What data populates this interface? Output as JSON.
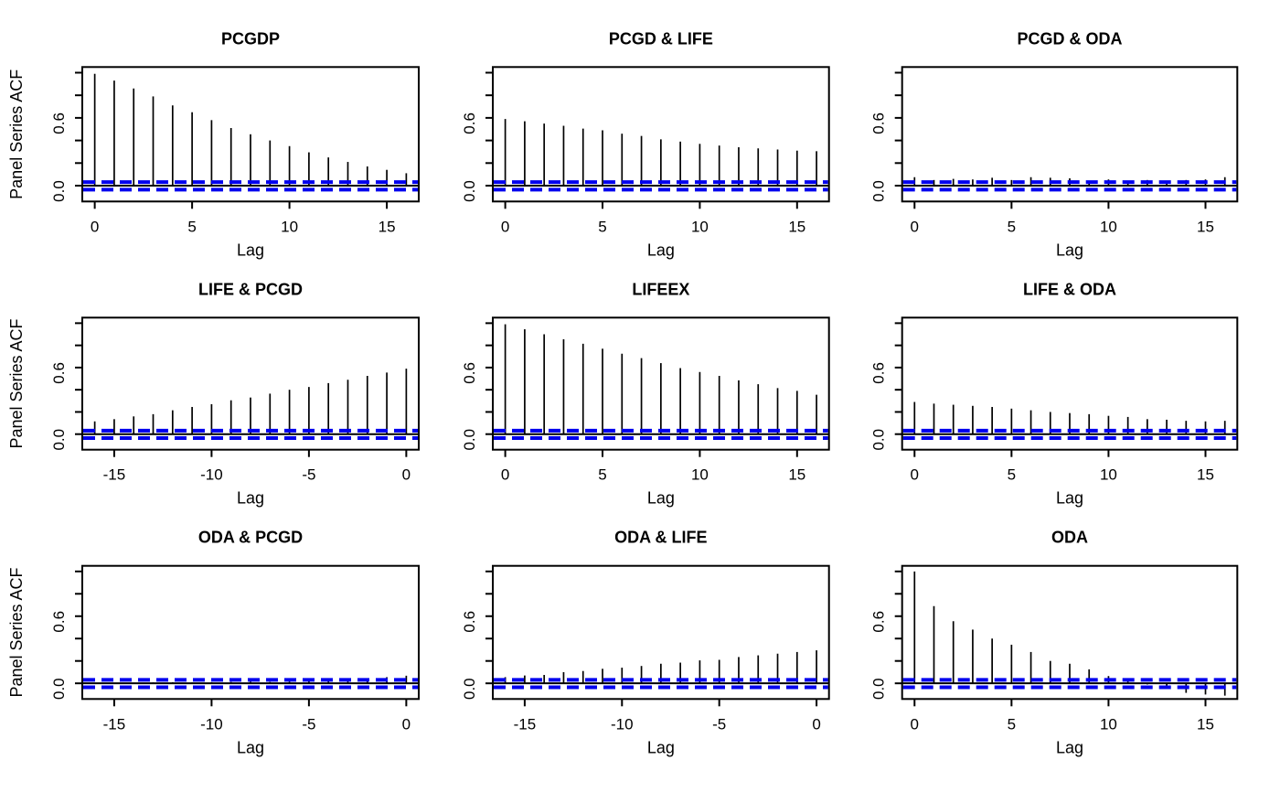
{
  "figure": {
    "ylabel": "Panel Series ACF",
    "xlabel": "Lag",
    "background_color": "#ffffff",
    "bar_color": "#000000",
    "box_color": "#000000",
    "zero_line_color": "#000000",
    "ci_line_color": "#0000EE",
    "text_color": "#000000"
  },
  "chart_data": {
    "type": "bar",
    "subtype": "acf-panel-grid",
    "grid": [
      3,
      3
    ],
    "title": "",
    "xlabel": "Lag",
    "ylabel": "Panel Series ACF",
    "ylim": [
      -0.14,
      1.05
    ],
    "yticks": [
      0,
      0.2,
      0.4,
      0.6,
      0.8,
      1.0
    ],
    "labeled_yticks": [
      {
        "value": 0.0,
        "label": "0.0"
      },
      {
        "value": 0.6,
        "label": "0.6"
      }
    ],
    "ci_band": 0.02,
    "legend": "none",
    "grid_lines": false,
    "panels": [
      {
        "title": "PCGDP",
        "row": 0,
        "col": 0,
        "show_ylabel": true,
        "lags": [
          0,
          1,
          2,
          3,
          4,
          5,
          6,
          7,
          8,
          9,
          10,
          11,
          12,
          13,
          14,
          15,
          16
        ],
        "acf": [
          0.99,
          0.93,
          0.86,
          0.79,
          0.71,
          0.65,
          0.58,
          0.51,
          0.455,
          0.4,
          0.35,
          0.295,
          0.25,
          0.21,
          0.17,
          0.14,
          0.11
        ],
        "xtick_values": [
          0,
          5,
          10,
          15
        ],
        "xtick_labels": [
          "0",
          "5",
          "10",
          "15"
        ]
      },
      {
        "title": "PCGD & LIFE",
        "row": 0,
        "col": 1,
        "show_ylabel": false,
        "lags": [
          0,
          1,
          2,
          3,
          4,
          5,
          6,
          7,
          8,
          9,
          10,
          11,
          12,
          13,
          14,
          15,
          16
        ],
        "acf": [
          0.59,
          0.57,
          0.55,
          0.53,
          0.505,
          0.49,
          0.46,
          0.44,
          0.41,
          0.39,
          0.37,
          0.355,
          0.34,
          0.33,
          0.32,
          0.31,
          0.305
        ],
        "xtick_values": [
          0,
          5,
          10,
          15
        ],
        "xtick_labels": [
          "0",
          "5",
          "10",
          "15"
        ]
      },
      {
        "title": "PCGD & ODA",
        "row": 0,
        "col": 2,
        "show_ylabel": false,
        "lags": [
          0,
          1,
          2,
          3,
          4,
          5,
          6,
          7,
          8,
          9,
          10,
          11,
          12,
          13,
          14,
          15,
          16
        ],
        "acf": [
          0.075,
          0.05,
          0.06,
          0.055,
          0.07,
          0.05,
          0.075,
          0.07,
          0.065,
          0.04,
          0.055,
          0.04,
          0.05,
          0.04,
          0.05,
          0.055,
          0.075
        ],
        "xtick_values": [
          0,
          5,
          10,
          15
        ],
        "xtick_labels": [
          "0",
          "5",
          "10",
          "15"
        ]
      },
      {
        "title": "LIFE & PCGD",
        "row": 1,
        "col": 0,
        "show_ylabel": true,
        "lags": [
          -16,
          -15,
          -14,
          -13,
          -12,
          -11,
          -10,
          -9,
          -8,
          -7,
          -6,
          -5,
          -4,
          -3,
          -2,
          -1,
          0
        ],
        "acf": [
          0.115,
          0.135,
          0.16,
          0.18,
          0.215,
          0.245,
          0.27,
          0.305,
          0.33,
          0.365,
          0.4,
          0.425,
          0.46,
          0.49,
          0.525,
          0.555,
          0.59
        ],
        "xtick_values": [
          -15,
          -10,
          -5,
          0
        ],
        "xtick_labels": [
          "-15",
          "-10",
          "-5",
          "0"
        ]
      },
      {
        "title": "LIFEEX",
        "row": 1,
        "col": 1,
        "show_ylabel": false,
        "lags": [
          0,
          1,
          2,
          3,
          4,
          5,
          6,
          7,
          8,
          9,
          10,
          11,
          12,
          13,
          14,
          15,
          16
        ],
        "acf": [
          0.99,
          0.945,
          0.9,
          0.855,
          0.815,
          0.77,
          0.725,
          0.685,
          0.64,
          0.595,
          0.56,
          0.525,
          0.485,
          0.45,
          0.415,
          0.39,
          0.355
        ],
        "xtick_values": [
          0,
          5,
          10,
          15
        ],
        "xtick_labels": [
          "0",
          "5",
          "10",
          "15"
        ]
      },
      {
        "title": "LIFE & ODA",
        "row": 1,
        "col": 2,
        "show_ylabel": false,
        "lags": [
          0,
          1,
          2,
          3,
          4,
          5,
          6,
          7,
          8,
          9,
          10,
          11,
          12,
          13,
          14,
          15,
          16
        ],
        "acf": [
          0.29,
          0.275,
          0.265,
          0.255,
          0.245,
          0.23,
          0.215,
          0.2,
          0.19,
          0.18,
          0.165,
          0.155,
          0.135,
          0.13,
          0.12,
          0.115,
          0.12
        ],
        "xtick_values": [
          0,
          5,
          10,
          15
        ],
        "xtick_labels": [
          "0",
          "5",
          "10",
          "15"
        ]
      },
      {
        "title": "ODA & PCGD",
        "row": 2,
        "col": 0,
        "show_ylabel": true,
        "lags": [
          -16,
          -15,
          -14,
          -13,
          -12,
          -11,
          -10,
          -9,
          -8,
          -7,
          -6,
          -5,
          -4,
          -3,
          -2,
          -1,
          0
        ],
        "acf": [
          0.005,
          0.005,
          0.005,
          0.008,
          0.01,
          0.008,
          0.01,
          0.012,
          0.015,
          0.012,
          0.015,
          0.018,
          0.02,
          0.033,
          0.04,
          0.055,
          0.068
        ],
        "xtick_values": [
          -15,
          -10,
          -5,
          0
        ],
        "xtick_labels": [
          "-15",
          "-10",
          "-5",
          "0"
        ]
      },
      {
        "title": "ODA & LIFE",
        "row": 2,
        "col": 1,
        "show_ylabel": false,
        "lags": [
          -16,
          -15,
          -14,
          -13,
          -12,
          -11,
          -10,
          -9,
          -8,
          -7,
          -6,
          -5,
          -4,
          -3,
          -2,
          -1,
          0
        ],
        "acf": [
          0.055,
          0.07,
          0.075,
          0.1,
          0.11,
          0.13,
          0.14,
          0.155,
          0.175,
          0.185,
          0.205,
          0.21,
          0.235,
          0.25,
          0.265,
          0.28,
          0.295
        ],
        "xtick_values": [
          -15,
          -10,
          -5,
          0
        ],
        "xtick_labels": [
          "-15",
          "-10",
          "-5",
          "0"
        ]
      },
      {
        "title": "ODA",
        "row": 2,
        "col": 2,
        "show_ylabel": false,
        "lags": [
          0,
          1,
          2,
          3,
          4,
          5,
          6,
          7,
          8,
          9,
          10,
          11,
          12,
          13,
          14,
          15,
          16
        ],
        "acf": [
          1.0,
          0.69,
          0.555,
          0.48,
          0.4,
          0.345,
          0.28,
          0.2,
          0.175,
          0.125,
          0.065,
          0.035,
          -0.01,
          -0.045,
          -0.085,
          -0.1,
          -0.11
        ],
        "xtick_values": [
          0,
          5,
          10,
          15
        ],
        "xtick_labels": [
          "0",
          "5",
          "10",
          "15"
        ]
      }
    ]
  }
}
